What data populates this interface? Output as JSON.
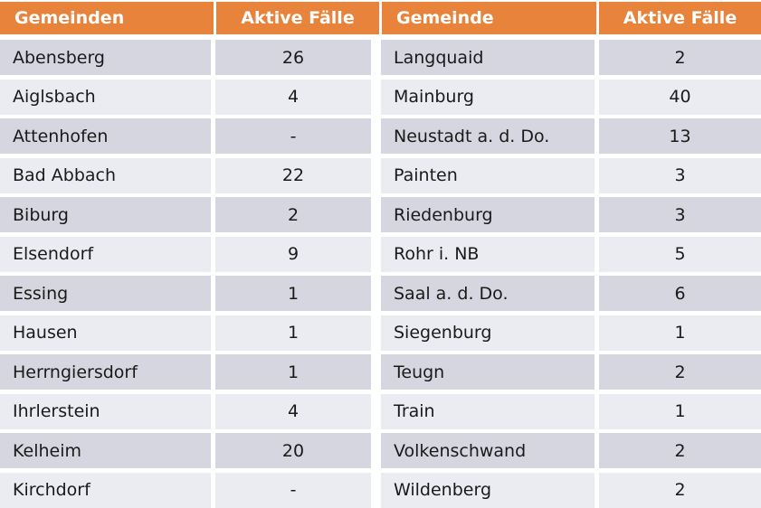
{
  "chart_data": {
    "type": "table",
    "tables": [
      {
        "headers": [
          "Gemeinden",
          "Aktive Fälle"
        ],
        "rows": [
          [
            "Abensberg",
            "26"
          ],
          [
            "Aiglsbach",
            "4"
          ],
          [
            "Attenhofen",
            "-"
          ],
          [
            "Bad Abbach",
            "22"
          ],
          [
            "Biburg",
            "2"
          ],
          [
            "Elsendorf",
            "9"
          ],
          [
            "Essing",
            "1"
          ],
          [
            "Hausen",
            "1"
          ],
          [
            "Herrngiersdorf",
            "1"
          ],
          [
            "Ihrlerstein",
            "4"
          ],
          [
            "Kelheim",
            "20"
          ],
          [
            "Kirchdorf",
            "-"
          ]
        ]
      },
      {
        "headers": [
          "Gemeinde",
          "Aktive Fälle"
        ],
        "rows": [
          [
            "Langquaid",
            "2"
          ],
          [
            "Mainburg",
            "40"
          ],
          [
            "Neustadt a. d. Do.",
            "13"
          ],
          [
            "Painten",
            "3"
          ],
          [
            "Riedenburg",
            "3"
          ],
          [
            "Rohr i. NB",
            "5"
          ],
          [
            "Saal a. d. Do.",
            "6"
          ],
          [
            "Siegenburg",
            "1"
          ],
          [
            "Teugn",
            "2"
          ],
          [
            "Train",
            "1"
          ],
          [
            "Volkenschwand",
            "2"
          ],
          [
            "Wildenberg",
            "2"
          ]
        ]
      }
    ]
  },
  "style": {
    "header_bg": "#E8833C",
    "header_text": "#FFFFFF",
    "row_odd_bg": "#D5D6DF",
    "row_even_bg": "#EBECF1",
    "cell_text": "#1A1A1A",
    "background": "#FFFFFF"
  }
}
